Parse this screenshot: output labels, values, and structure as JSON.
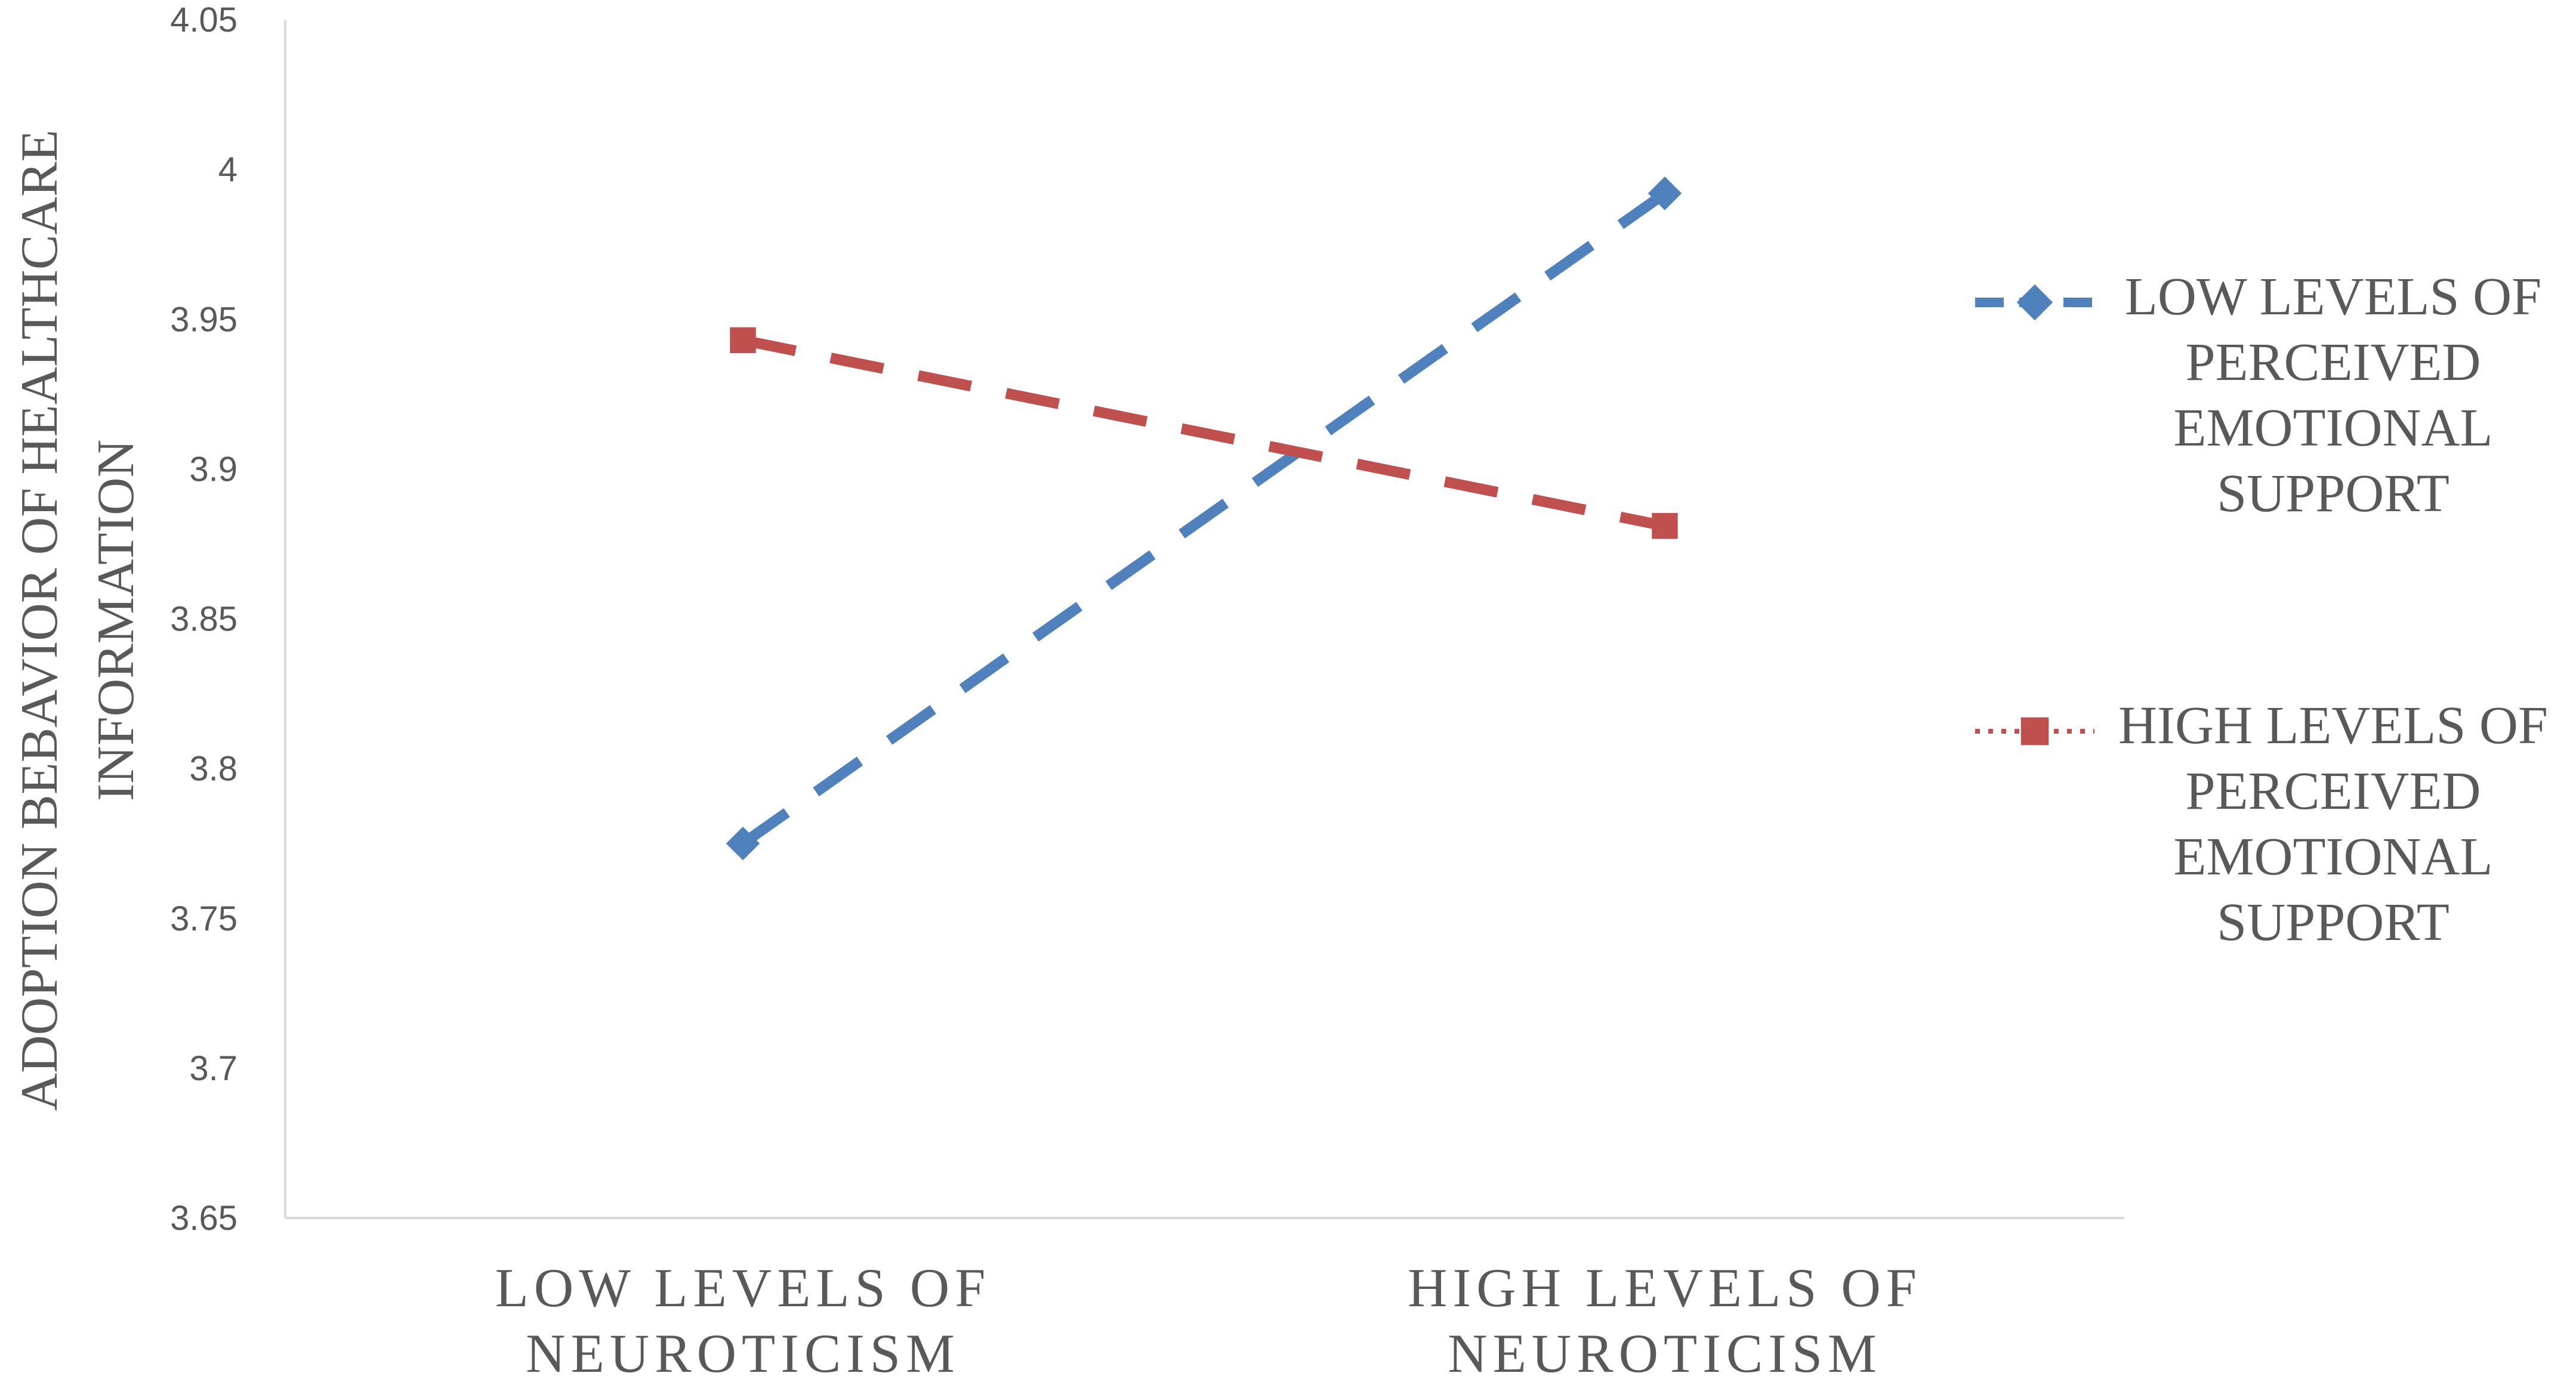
{
  "chart_data": {
    "type": "line",
    "categories": [
      [
        "LOW LEVELS OF",
        "NEUROTICISM"
      ],
      [
        "HIGH LEVELS OF",
        "NEUROTICISM"
      ]
    ],
    "ylabel": [
      "ADOPTION BEBAVIOR OF HEALTHCARE",
      "INFORMATION"
    ],
    "ylim": [
      3.65,
      4.05
    ],
    "yticks": [
      "4.05",
      "4",
      "3.95",
      "3.9",
      "3.85",
      "3.8",
      "3.75",
      "3.7",
      "3.65"
    ],
    "legend_position": "right",
    "grid": false,
    "series": [
      {
        "name": [
          "LOW LEVELS OF",
          "PERCEIVED",
          "EMOTIONAL",
          "SUPPORT"
        ],
        "values": [
          3.775,
          3.992
        ],
        "color": "#4F81BD",
        "marker": "diamond",
        "line_style": "dashed"
      },
      {
        "name": [
          "HIGH LEVELS OF",
          "PERCEIVED",
          "EMOTIONAL",
          "SUPPORT"
        ],
        "values": [
          3.943,
          3.881
        ],
        "color": "#C0504D",
        "marker": "square",
        "line_style": "dashed",
        "legend_line_style": "dotted"
      }
    ]
  }
}
